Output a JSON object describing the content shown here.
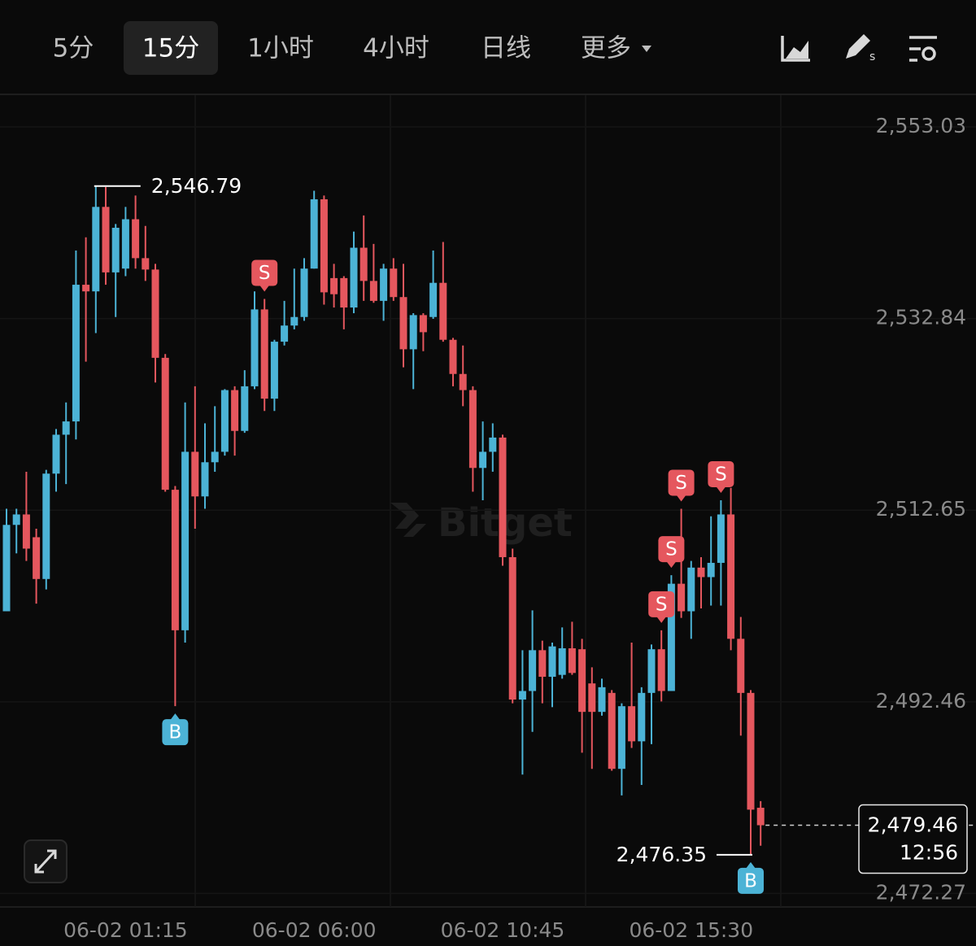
{
  "toolbar": {
    "tabs": [
      "5分",
      "15分",
      "1小时",
      "4小时",
      "日线",
      "更多"
    ],
    "active": 1
  },
  "chart_data": {
    "type": "candlestick",
    "watermark": "Bitget",
    "categories": [
      null,
      null,
      null,
      null,
      null,
      null,
      null,
      null,
      null,
      null,
      null,
      null,
      "06-02 01:15",
      null,
      null,
      null,
      null,
      null,
      null,
      null,
      null,
      null,
      null,
      null,
      null,
      null,
      null,
      null,
      null,
      null,
      null,
      "06-02 06:00",
      null,
      null,
      null,
      null,
      null,
      null,
      null,
      null,
      null,
      null,
      null,
      null,
      null,
      null,
      null,
      null,
      null,
      null,
      "06-02 10:45",
      null,
      null,
      null,
      null,
      null,
      null,
      null,
      null,
      null,
      null,
      null,
      null,
      null,
      null,
      null,
      null,
      null,
      null,
      "06-02 15:30",
      null,
      null,
      null,
      null,
      null,
      null,
      null
    ],
    "open": [
      2502.0,
      2511.1,
      2512.2,
      2509.8,
      2505.4,
      2516.5,
      2520.6,
      2522.0,
      2536.4,
      2535.7,
      2544.6,
      2537.7,
      2538.1,
      2543.3,
      2539.2,
      2538.0,
      2528.7,
      2514.8,
      2500.0,
      2518.8,
      2514.1,
      2517.7,
      2518.8,
      2525.3,
      2521.0,
      2525.7,
      2533.8,
      2524.4,
      2530.4,
      2532.1,
      2533.0,
      2538.1,
      2545.4,
      2537.1,
      2537.1,
      2534.0,
      2540.3,
      2536.8,
      2534.7,
      2538.1,
      2535.1,
      2529.6,
      2533.2,
      2533.0,
      2536.6,
      2530.6,
      2527.0,
      2525.3,
      2517.1,
      2518.8,
      2520.3,
      2507.7,
      2492.7,
      2493.6,
      2497.9,
      2495.1,
      2495.3,
      2498.1,
      2498.0,
      2494.4,
      2491.4,
      2493.4,
      2485.4,
      2492.0,
      2488.3,
      2493.4,
      2498.0,
      2493.6,
      2504.9,
      2502.0,
      2506.6,
      2505.6,
      2507.1,
      2512.2,
      2499.1,
      2493.4,
      2481.3
    ],
    "high": [
      2512.8,
      2512.8,
      2516.7,
      2510.7,
      2516.9,
      2521.2,
      2524.0,
      2540.0,
      2541.4,
      2546.79,
      2546.7,
      2542.8,
      2544.6,
      2545.8,
      2542.6,
      2538.6,
      2529.1,
      2515.2,
      2524.0,
      2525.7,
      2521.8,
      2523.6,
      2525.4,
      2525.7,
      2527.4,
      2535.7,
      2534.9,
      2530.6,
      2534.7,
      2538.1,
      2539.2,
      2546.3,
      2545.8,
      2538.6,
      2537.3,
      2542.0,
      2543.7,
      2540.7,
      2538.6,
      2539.2,
      2538.6,
      2533.4,
      2533.4,
      2540.0,
      2540.9,
      2530.8,
      2530.0,
      2525.7,
      2522.0,
      2521.8,
      2520.6,
      2508.6,
      2497.9,
      2502.1,
      2498.9,
      2498.7,
      2500.3,
      2500.9,
      2499.1,
      2496.1,
      2494.9,
      2493.7,
      2492.3,
      2498.7,
      2494.0,
      2498.5,
      2500.0,
      2505.8,
      2512.8,
      2507.3,
      2507.7,
      2512.0,
      2513.7,
      2515.0,
      2501.4,
      2493.7,
      2482.0
    ],
    "low": [
      2502.0,
      2508.1,
      2507.3,
      2502.8,
      2504.3,
      2514.6,
      2515.4,
      2520.1,
      2528.3,
      2531.3,
      2536.4,
      2533.0,
      2537.3,
      2538.1,
      2536.8,
      2526.1,
      2514.6,
      2492.0,
      2498.7,
      2510.7,
      2512.8,
      2516.7,
      2518.4,
      2518.4,
      2520.8,
      2525.4,
      2523.1,
      2523.1,
      2530.0,
      2531.7,
      2532.6,
      2538.1,
      2534.3,
      2534.0,
      2531.7,
      2533.4,
      2534.7,
      2534.5,
      2532.6,
      2534.7,
      2527.7,
      2525.4,
      2529.4,
      2532.8,
      2530.4,
      2525.7,
      2523.6,
      2514.6,
      2513.7,
      2516.7,
      2506.8,
      2492.3,
      2484.8,
      2489.3,
      2492.3,
      2491.9,
      2494.9,
      2495.3,
      2487.1,
      2485.4,
      2491.0,
      2485.2,
      2482.6,
      2487.6,
      2483.7,
      2488.0,
      2492.5,
      2493.6,
      2501.3,
      2499.1,
      2502.3,
      2502.6,
      2502.6,
      2497.9,
      2488.9,
      2476.35,
      2477.3
    ],
    "close": [
      2511.1,
      2512.2,
      2508.6,
      2505.4,
      2516.5,
      2520.6,
      2522.0,
      2536.4,
      2535.7,
      2544.6,
      2537.7,
      2542.4,
      2543.3,
      2539.2,
      2538.0,
      2528.7,
      2514.8,
      2500.0,
      2518.8,
      2514.1,
      2517.7,
      2518.8,
      2525.3,
      2521.0,
      2525.7,
      2533.8,
      2524.4,
      2530.4,
      2532.1,
      2533.0,
      2538.1,
      2545.4,
      2535.6,
      2535.4,
      2534.0,
      2540.3,
      2536.8,
      2534.7,
      2538.1,
      2535.1,
      2529.6,
      2533.2,
      2531.4,
      2536.6,
      2530.6,
      2527.0,
      2525.3,
      2517.1,
      2518.8,
      2520.3,
      2507.7,
      2492.7,
      2493.6,
      2497.9,
      2495.1,
      2498.3,
      2498.1,
      2495.5,
      2491.4,
      2491.4,
      2494.0,
      2485.4,
      2492.0,
      2488.3,
      2493.4,
      2498.0,
      2493.6,
      2504.9,
      2502.0,
      2506.6,
      2505.6,
      2507.1,
      2512.2,
      2499.1,
      2493.4,
      2481.1,
      2479.46
    ],
    "up_color": "#4cb3d6",
    "down_color": "#e5575e",
    "ylim": [
      2470.85,
      2556.37
    ],
    "yticks": [
      {
        "value": 2553.03,
        "label": "2,553.03"
      },
      {
        "value": 2532.84,
        "label": "2,532.84"
      },
      {
        "value": 2512.65,
        "label": "2,512.65"
      },
      {
        "value": 2492.46,
        "label": "2,492.46"
      },
      {
        "value": 2472.27,
        "label": "2,472.27"
      }
    ],
    "grid": true,
    "max_label": {
      "value": 2546.79,
      "label": "2,546.79"
    },
    "min_label": {
      "value": 2476.35,
      "label": "2,476.35"
    },
    "last_price": {
      "value": 2479.46,
      "label": "2,479.46"
    },
    "countdown": "12:56",
    "markers": [
      {
        "index": 17,
        "label": "B"
      },
      {
        "index": 26,
        "label": "S"
      },
      {
        "index": 66,
        "label": "S"
      },
      {
        "index": 67,
        "label": "S"
      },
      {
        "index": 68,
        "label": "S"
      },
      {
        "index": 72,
        "label": "S"
      },
      {
        "index": 75,
        "label": "B"
      }
    ]
  }
}
